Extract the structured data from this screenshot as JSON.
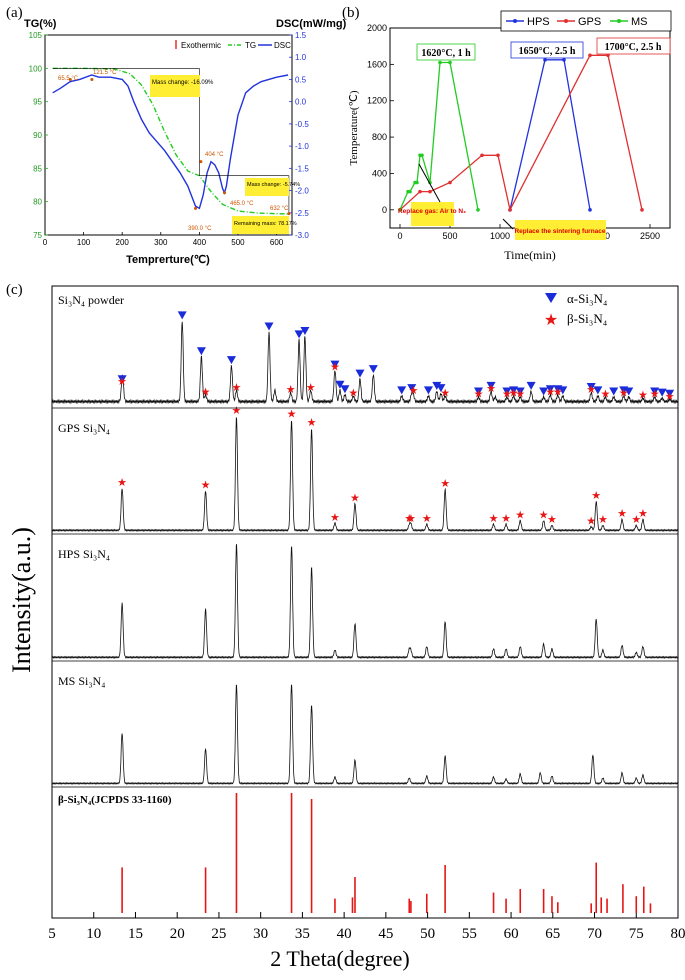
{
  "panel_a": {
    "label": "(a)",
    "chart_data": {
      "type": "line",
      "title": "",
      "xlabel": "Temprerture(℃)",
      "ylabel_left": "TG(%)",
      "ylabel_right": "DSC(mW/mg)",
      "xlim": [
        0,
        640
      ],
      "ylim_left": [
        75,
        105
      ],
      "ylim_right": [
        -3.0,
        1.5
      ],
      "x_ticks": [
        0,
        100,
        200,
        300,
        400,
        500,
        600
      ],
      "y_left_ticks": [
        75,
        80,
        85,
        90,
        95,
        100,
        105
      ],
      "y_right_ticks": [
        -3.0,
        -2.5,
        -2.0,
        -1.5,
        -1.0,
        -0.5,
        0.0,
        0.5,
        1.0,
        1.5
      ],
      "legend": {
        "exothermic": "Exothermic",
        "tg": "TG",
        "dsc": "DSC"
      },
      "series": [
        {
          "name": "TG",
          "axis": "left",
          "color": "#22cc22",
          "x": [
            20,
            100,
            180,
            220,
            250,
            280,
            310,
            340,
            370,
            400,
            430,
            460,
            500,
            550,
            600,
            630
          ],
          "y": [
            100,
            100,
            99.9,
            99.2,
            97.5,
            94.5,
            90.5,
            87.0,
            84.6,
            83.9,
            81.5,
            79.6,
            78.6,
            78.3,
            78.2,
            78.17
          ]
        },
        {
          "name": "DSC",
          "axis": "right",
          "color": "#2233dd",
          "x": [
            20,
            40,
            65,
            90,
            121,
            140,
            170,
            200,
            215,
            230,
            250,
            270,
            290,
            310,
            330,
            350,
            370,
            390,
            400,
            410,
            420,
            430,
            440,
            450,
            460,
            465,
            470,
            480,
            500,
            520,
            540,
            560,
            580,
            600,
            630
          ],
          "y": [
            0.2,
            0.3,
            0.45,
            0.5,
            0.6,
            0.55,
            0.55,
            0.5,
            0.35,
            0.0,
            -0.4,
            -0.7,
            -0.9,
            -1.1,
            -1.35,
            -1.6,
            -1.9,
            -2.35,
            -2.4,
            -2.1,
            -1.6,
            -1.35,
            -1.42,
            -1.6,
            -1.95,
            -2.05,
            -1.9,
            -1.3,
            -0.3,
            0.2,
            0.35,
            0.45,
            0.5,
            0.55,
            0.6
          ]
        }
      ],
      "point_labels": [
        "65.5 °C",
        "121.5 °C",
        "390.0 °C",
        "404 °C",
        "465.0 °C",
        "632 °C"
      ],
      "annotations": [
        "Mass change: -16.09%",
        "Mass change: -5.74%",
        "Remaining mass: 78.17%"
      ]
    }
  },
  "panel_b": {
    "label": "(b)",
    "chart_data": {
      "type": "line",
      "xlabel": "Time(min)",
      "ylabel": "Temperature(℃)",
      "xlim": [
        -100,
        2700
      ],
      "ylim": [
        -200,
        2000
      ],
      "x_ticks": [
        0,
        500,
        1000,
        1500,
        2000,
        2500
      ],
      "y_ticks": [
        0,
        400,
        800,
        1200,
        1600,
        2000
      ],
      "legend": [
        "HPS",
        "GPS",
        "MS"
      ],
      "series": [
        {
          "name": "HPS",
          "color": "#2233dd",
          "x": [
            1100,
            1450,
            1640,
            1900
          ],
          "y": [
            0,
            1650,
            1650,
            0
          ]
        },
        {
          "name": "GPS",
          "color": "#e03030",
          "x": [
            0,
            200,
            300,
            500,
            820,
            980,
            1100,
            1900,
            2080,
            2420
          ],
          "y": [
            0,
            200,
            200,
            300,
            600,
            600,
            0,
            1700,
            1700,
            0
          ]
        },
        {
          "name": "MS",
          "color": "#22cc22",
          "x": [
            0,
            80,
            100,
            150,
            170,
            200,
            220,
            300,
            400,
            500,
            780
          ],
          "y": [
            0,
            200,
            200,
            300,
            300,
            600,
            600,
            300,
            1620,
            1620,
            0
          ]
        }
      ],
      "annotations": [
        "1620°C, 1 h",
        "1650°C, 2.5 h",
        "1700°C, 2.5 h",
        "Replace gas: Air to N₂",
        "Replace the sintering furnace"
      ]
    }
  },
  "panel_c": {
    "label": "(c)",
    "chart_data": {
      "type": "line",
      "xlabel": "2 Theta(degree)",
      "ylabel": "Intensity(a.u.)",
      "xlim": [
        5,
        80
      ],
      "x_ticks": [
        5,
        10,
        15,
        20,
        25,
        30,
        35,
        40,
        45,
        50,
        55,
        60,
        65,
        70,
        75,
        80
      ],
      "legend": {
        "alpha": "α-Si₃N₄",
        "beta": "β-Si₃N₄"
      },
      "series": [
        {
          "name": "Si₃N₄ powder",
          "peaks": [
            [
              13.4,
              0.15
            ],
            [
              13.5,
              0.1
            ],
            [
              20.6,
              0.72
            ],
            [
              22.9,
              0.4
            ],
            [
              23.4,
              0.06
            ],
            [
              26.5,
              0.32
            ],
            [
              27.1,
              0.1
            ],
            [
              31.0,
              0.62
            ],
            [
              31.7,
              0.1
            ],
            [
              33.6,
              0.08
            ],
            [
              34.6,
              0.55
            ],
            [
              35.3,
              0.58
            ],
            [
              36.0,
              0.1
            ],
            [
              38.9,
              0.28
            ],
            [
              39.5,
              0.1
            ],
            [
              40.1,
              0.06
            ],
            [
              41.1,
              0.05
            ],
            [
              41.9,
              0.2
            ],
            [
              43.5,
              0.24
            ],
            [
              46.9,
              0.05
            ],
            [
              48.1,
              0.07
            ],
            [
              48.3,
              0.05
            ],
            [
              50.1,
              0.05
            ],
            [
              51.1,
              0.09
            ],
            [
              51.6,
              0.07
            ],
            [
              52.1,
              0.05
            ],
            [
              56.1,
              0.04
            ],
            [
              57.6,
              0.09
            ],
            [
              58.1,
              0.04
            ],
            [
              59.5,
              0.04
            ],
            [
              60.3,
              0.05
            ],
            [
              61.1,
              0.04
            ],
            [
              62.4,
              0.09
            ],
            [
              63.9,
              0.04
            ],
            [
              64.7,
              0.06
            ],
            [
              65.6,
              0.06
            ],
            [
              66.2,
              0.05
            ],
            [
              69.6,
              0.08
            ],
            [
              70.4,
              0.05
            ],
            [
              71.3,
              0.04
            ],
            [
              72.3,
              0.04
            ],
            [
              73.5,
              0.05
            ],
            [
              74.1,
              0.04
            ],
            [
              75.8,
              0.03
            ],
            [
              77.2,
              0.04
            ],
            [
              78.1,
              0.03
            ],
            [
              79.0,
              0.02
            ]
          ],
          "alpha_markers": [
            13.4,
            20.6,
            22.9,
            26.5,
            31.0,
            34.6,
            35.3,
            38.9,
            39.5,
            40.1,
            41.9,
            43.5,
            46.9,
            48.1,
            50.1,
            51.1,
            51.6,
            56.1,
            57.6,
            59.5,
            60.3,
            61.1,
            62.4,
            63.9,
            64.7,
            65.6,
            66.2,
            69.6,
            70.4,
            72.3,
            73.5,
            74.1,
            77.2,
            78.1,
            79.0
          ],
          "beta_markers": [
            13.4,
            23.4,
            27.1,
            33.6,
            36.0,
            38.9,
            41.1,
            48.3,
            52.1,
            56.1,
            57.6,
            59.5,
            60.3,
            61.1,
            64.7,
            65.6,
            69.6,
            71.3,
            73.5,
            75.8,
            77.2,
            79.0
          ]
        },
        {
          "name": "GPS Si₃N₄",
          "peaks": [
            [
              13.4,
              0.35
            ],
            [
              23.4,
              0.33
            ],
            [
              27.1,
              0.95
            ],
            [
              33.7,
              0.92
            ],
            [
              36.1,
              0.85
            ],
            [
              38.9,
              0.06
            ],
            [
              41.3,
              0.22
            ],
            [
              47.8,
              0.04
            ],
            [
              48.0,
              0.05
            ],
            [
              49.9,
              0.05
            ],
            [
              52.1,
              0.34
            ],
            [
              57.9,
              0.05
            ],
            [
              59.4,
              0.05
            ],
            [
              61.1,
              0.08
            ],
            [
              63.9,
              0.08
            ],
            [
              64.9,
              0.04
            ],
            [
              69.6,
              0.03
            ],
            [
              70.2,
              0.24
            ],
            [
              71.0,
              0.04
            ],
            [
              73.3,
              0.09
            ],
            [
              75.0,
              0.04
            ],
            [
              75.8,
              0.09
            ]
          ],
          "beta_markers": [
            13.4,
            23.4,
            27.1,
            33.7,
            36.1,
            38.9,
            41.3,
            47.8,
            48.0,
            49.9,
            52.1,
            57.9,
            59.4,
            61.1,
            63.9,
            64.9,
            69.6,
            70.2,
            71.0,
            73.3,
            75.0,
            75.8
          ]
        },
        {
          "name": "HPS Si₃N₄",
          "peaks": [
            [
              13.4,
              0.45
            ],
            [
              23.4,
              0.4
            ],
            [
              27.1,
              0.95
            ],
            [
              33.7,
              0.93
            ],
            [
              36.1,
              0.75
            ],
            [
              38.9,
              0.06
            ],
            [
              41.3,
              0.28
            ],
            [
              47.8,
              0.06
            ],
            [
              48.0,
              0.05
            ],
            [
              49.9,
              0.09
            ],
            [
              52.1,
              0.3
            ],
            [
              57.9,
              0.07
            ],
            [
              59.4,
              0.07
            ],
            [
              61.1,
              0.09
            ],
            [
              63.9,
              0.11
            ],
            [
              64.9,
              0.07
            ],
            [
              70.2,
              0.32
            ],
            [
              71.0,
              0.06
            ],
            [
              73.3,
              0.1
            ],
            [
              75.0,
              0.04
            ],
            [
              75.8,
              0.09
            ]
          ]
        },
        {
          "name": "MS Si₃N₄",
          "peaks": [
            [
              13.4,
              0.48
            ],
            [
              23.4,
              0.33
            ],
            [
              27.1,
              0.95
            ],
            [
              33.7,
              0.95
            ],
            [
              36.1,
              0.75
            ],
            [
              38.9,
              0.06
            ],
            [
              41.3,
              0.22
            ],
            [
              47.8,
              0.05
            ],
            [
              49.9,
              0.07
            ],
            [
              52.1,
              0.26
            ],
            [
              57.9,
              0.06
            ],
            [
              59.4,
              0.04
            ],
            [
              61.1,
              0.09
            ],
            [
              63.5,
              0.1
            ],
            [
              64.9,
              0.07
            ],
            [
              69.8,
              0.27
            ],
            [
              71.0,
              0.05
            ],
            [
              73.3,
              0.1
            ],
            [
              75.0,
              0.05
            ],
            [
              75.8,
              0.08
            ]
          ]
        },
        {
          "name": "β-Si₃N₄(JCPDS 33-1160)",
          "sticks": [
            [
              13.4,
              0.38
            ],
            [
              23.4,
              0.38
            ],
            [
              27.1,
              1.0
            ],
            [
              33.7,
              1.0
            ],
            [
              36.1,
              0.95
            ],
            [
              38.9,
              0.12
            ],
            [
              41.0,
              0.13
            ],
            [
              41.3,
              0.3
            ],
            [
              47.8,
              0.12
            ],
            [
              48.0,
              0.1
            ],
            [
              49.9,
              0.16
            ],
            [
              52.1,
              0.4
            ],
            [
              57.9,
              0.17
            ],
            [
              59.4,
              0.12
            ],
            [
              61.1,
              0.2
            ],
            [
              63.9,
              0.2
            ],
            [
              64.9,
              0.14
            ],
            [
              65.6,
              0.09
            ],
            [
              69.6,
              0.08
            ],
            [
              70.2,
              0.42
            ],
            [
              70.8,
              0.13
            ],
            [
              71.5,
              0.12
            ],
            [
              73.4,
              0.24
            ],
            [
              75.0,
              0.14
            ],
            [
              75.9,
              0.22
            ],
            [
              76.7,
              0.08
            ]
          ]
        }
      ]
    }
  }
}
